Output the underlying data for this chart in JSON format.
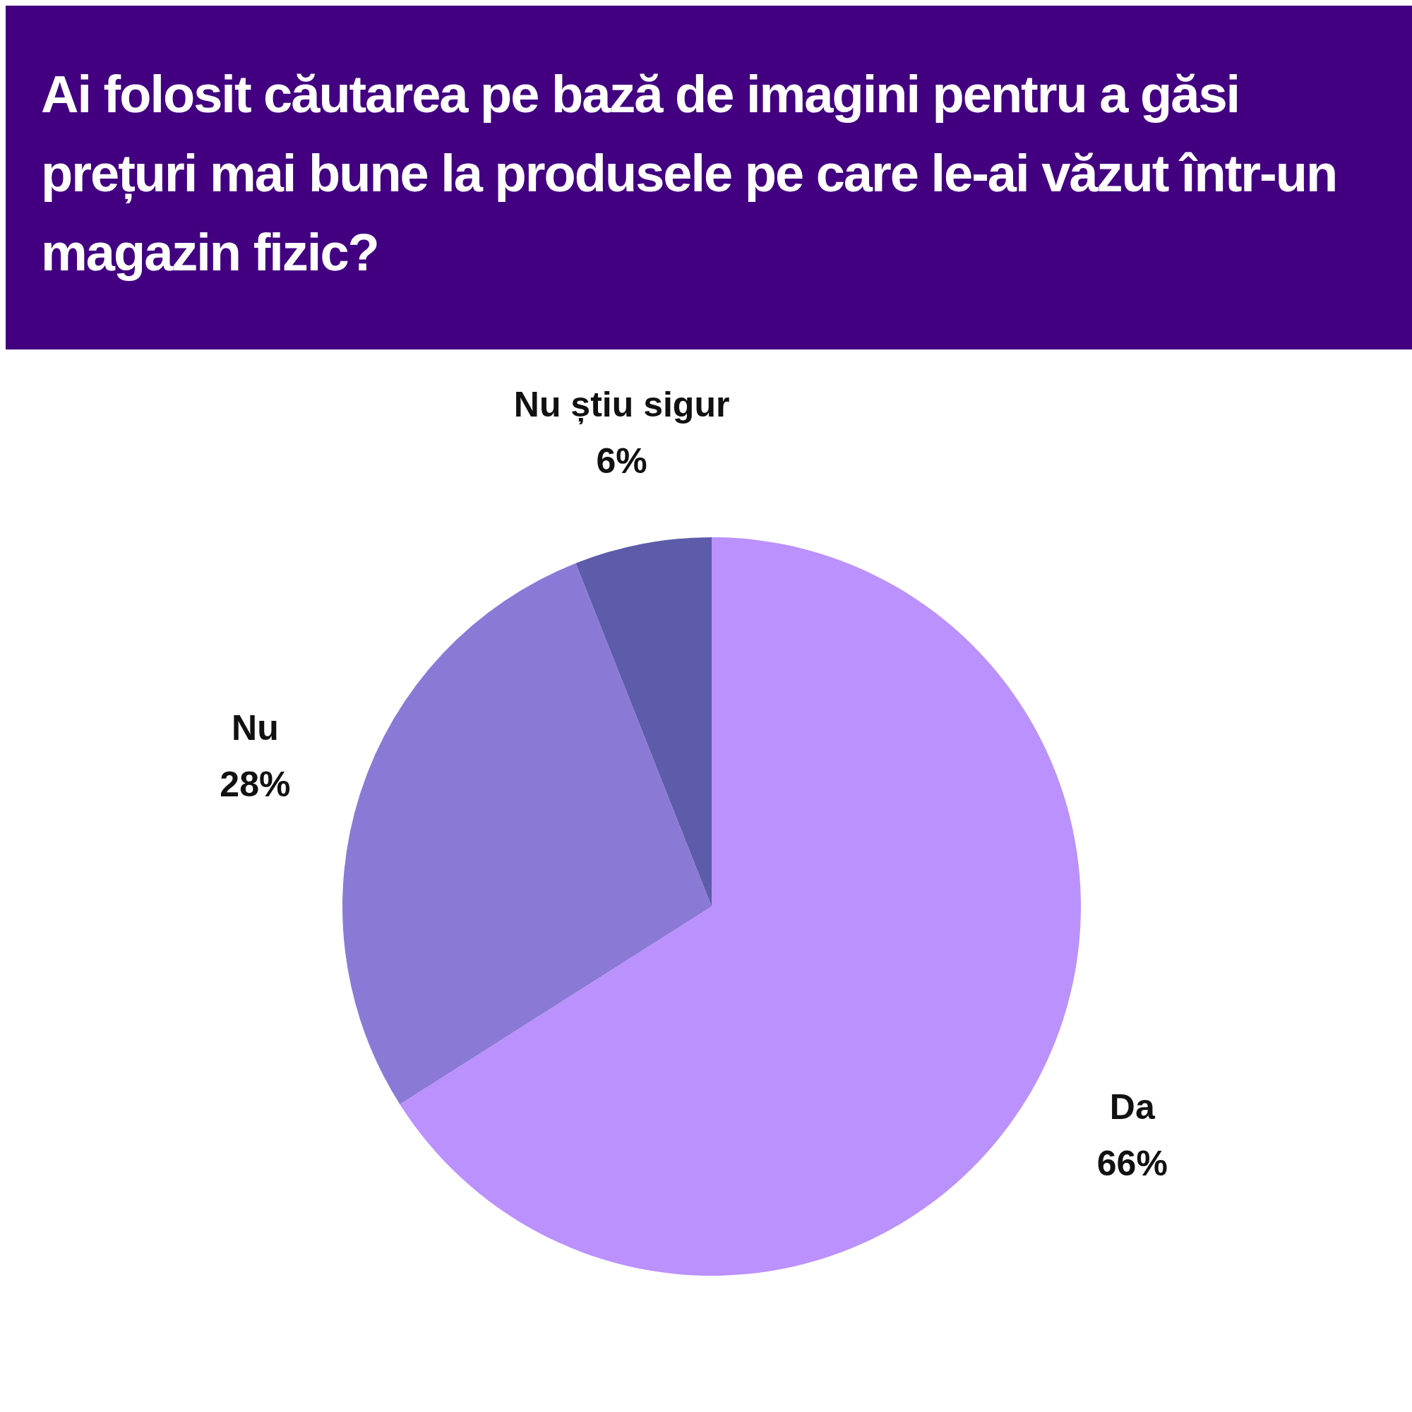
{
  "chart_data": {
    "type": "pie",
    "title": "Ai folosit căutarea pe bază de imagini pentru a găsi prețuri mai bune la produsele pe care le-ai văzut într-un magazin fizic?",
    "categories": [
      "Da",
      "Nu",
      "Nu știu sigur"
    ],
    "values": [
      66,
      28,
      6
    ],
    "value_labels": [
      "66%",
      "28%",
      "6%"
    ],
    "colors": [
      "#bb91fd",
      "#8b7ad5",
      "#5c5cab"
    ],
    "legend": false
  }
}
